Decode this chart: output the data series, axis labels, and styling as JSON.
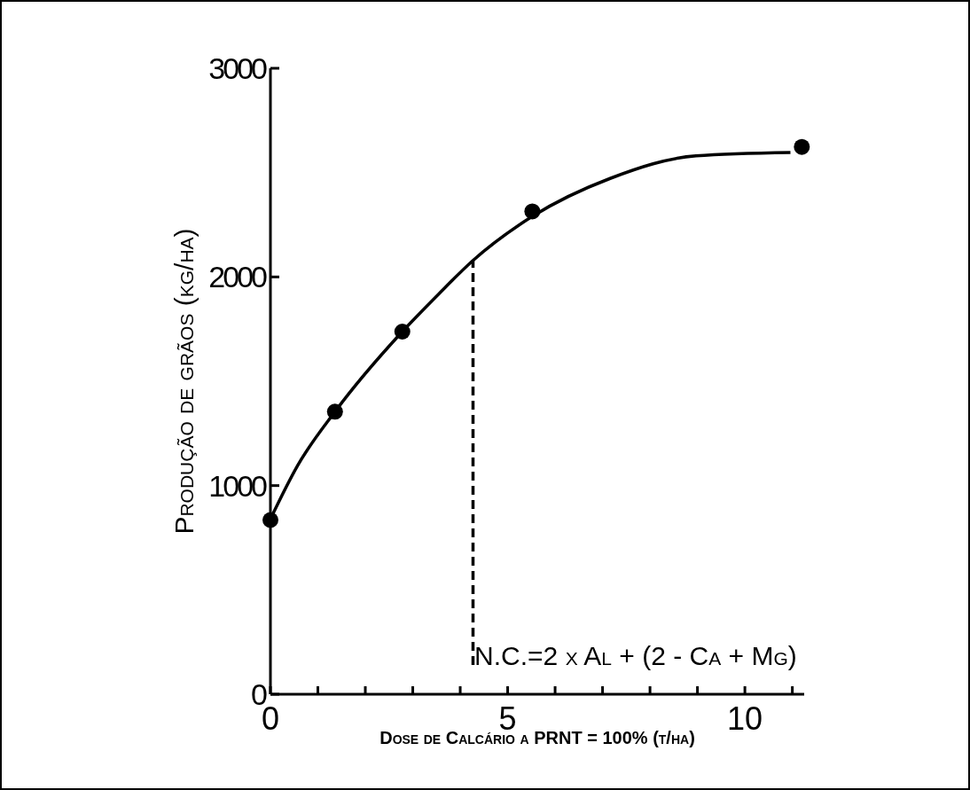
{
  "chart_data": {
    "type": "scatter",
    "xlabel": "Dose de Calcário a PRNT = 100% (t/ha)",
    "ylabel": "Produção de grãos (kg/ha)",
    "xlim": [
      0,
      11.25
    ],
    "ylim": [
      0,
      3000
    ],
    "xticks": [
      0,
      {
        "value": 1,
        "label": null
      },
      {
        "value": 2,
        "label": null
      },
      {
        "value": 3,
        "label": null
      },
      {
        "value": 4,
        "label": null
      },
      5,
      {
        "value": 6,
        "label": null
      },
      {
        "value": 7,
        "label": null
      },
      {
        "value": 8,
        "label": null
      },
      {
        "value": 9,
        "label": null
      },
      10,
      {
        "value": 11,
        "label": null
      }
    ],
    "yticks": [
      0,
      1000,
      2000,
      3000
    ],
    "marker": "circle",
    "grid": false,
    "series": [
      {
        "color": "#000000",
        "x": [
          0,
          1.36,
          2.78,
          5.52,
          11.2
        ],
        "values": [
          835,
          1354,
          1738,
          2314,
          2623
        ]
      },
      {
        "type": "line",
        "color": "#000000",
        "line_style": "solid",
        "marker": "none",
        "x": [
          0,
          0.57,
          1.36,
          2.78,
          3.55,
          4.27,
          5.52,
          7.16,
          8.97,
          10.96
        ],
        "values": [
          840,
          1095,
          1354,
          1738,
          1919,
          2079,
          2290,
          2472,
          2580,
          2596
        ]
      },
      {
        "type": "line",
        "color": "#000000",
        "line_style": "dashed",
        "marker": "none",
        "x": [
          4.27,
          4.27
        ],
        "values": [
          140,
          2079
        ]
      }
    ],
    "annotations": [
      {
        "text": "N.C.=2 x Al + (2 - Ca + Mg)",
        "x": 4.3,
        "y": 140
      }
    ]
  }
}
